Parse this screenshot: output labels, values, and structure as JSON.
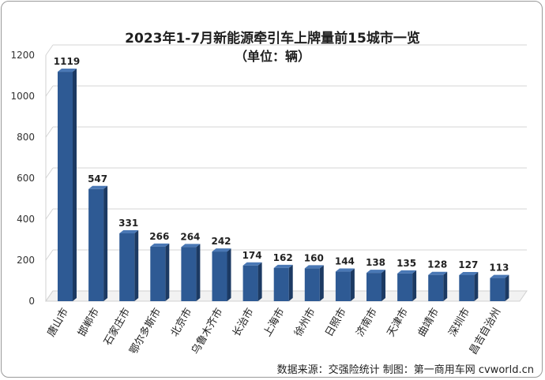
{
  "chart_data": {
    "type": "bar",
    "title": "2023年1-7月新能源牵引车上牌量前15城市一览",
    "subtitle": "（单位：辆）",
    "categories": [
      "唐山市",
      "邯郸市",
      "石家庄市",
      "鄂尔多斯市",
      "北京市",
      "乌鲁木齐市",
      "长治市",
      "上海市",
      "徐州市",
      "日照市",
      "济南市",
      "天津市",
      "曲靖市",
      "深圳市",
      "昌吉自治州"
    ],
    "values": [
      1119,
      547,
      331,
      266,
      264,
      242,
      174,
      162,
      160,
      144,
      138,
      135,
      128,
      127,
      113
    ],
    "y_ticks": [
      "0",
      "200",
      "400",
      "600",
      "800",
      "1000",
      "1200"
    ],
    "ylim": [
      0,
      1200
    ],
    "xlabel": "",
    "ylabel": "",
    "grid": true,
    "bar_color": "#2e5a94",
    "source": "数据来源：交强险统计  制图：第一商用车网 cvworld.cn"
  }
}
